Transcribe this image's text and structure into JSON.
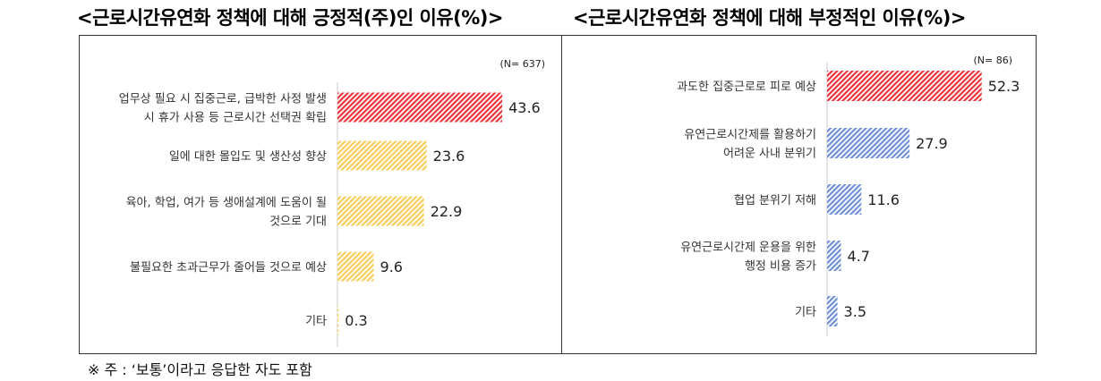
{
  "chart_data": [
    {
      "type": "bar",
      "orientation": "horizontal",
      "title": "<근로시간유연화 정책에 대해 긍정적(주)인 이유(%)>",
      "n_label": "(N= 637)",
      "categories": [
        [
          "업무상 필요 시 집중근로, 급박한 사정 발생",
          "시 휴가 사용 등 근로시간 선택권 확립"
        ],
        [
          "일에 대한 몰입도 및 생산성 향상"
        ],
        [
          "육아, 학업, 여가 등 생애설계에 도움이 될",
          "것으로 기대"
        ],
        [
          "불필요한 초과근무가 줄어들 것으로 예상"
        ],
        [
          "기타"
        ]
      ],
      "values": [
        43.6,
        23.6,
        22.9,
        9.6,
        0.3
      ],
      "colors": [
        "#e8333c",
        "#f9cd58",
        "#f9cd58",
        "#f9cd58",
        "#f9cd58"
      ],
      "xlim": [
        0,
        45
      ],
      "legend": "none",
      "grid": false
    },
    {
      "type": "bar",
      "orientation": "horizontal",
      "title": "<근로시간유연화 정책에 대해 부정적인 이유(%)>",
      "n_label": "(N= 86)",
      "categories": [
        [
          "과도한 집중근로로 피로 예상"
        ],
        [
          "유연근로시간제를 활용하기",
          "어려운 사내 분위기"
        ],
        [
          "협업 분위기 저해"
        ],
        [
          "유연근로시간제 운용을 위한",
          "행정 비용 증가"
        ],
        [
          "기타"
        ]
      ],
      "values": [
        52.3,
        27.9,
        11.6,
        4.7,
        3.5
      ],
      "colors": [
        "#e8333c",
        "#6f8fd6",
        "#6f8fd6",
        "#6f8fd6",
        "#6f8fd6"
      ],
      "xlim": [
        0,
        53
      ],
      "legend": "none",
      "grid": false
    }
  ],
  "footnote": "※ 주 : ‘보통’이라고 응답한 자도 포함"
}
